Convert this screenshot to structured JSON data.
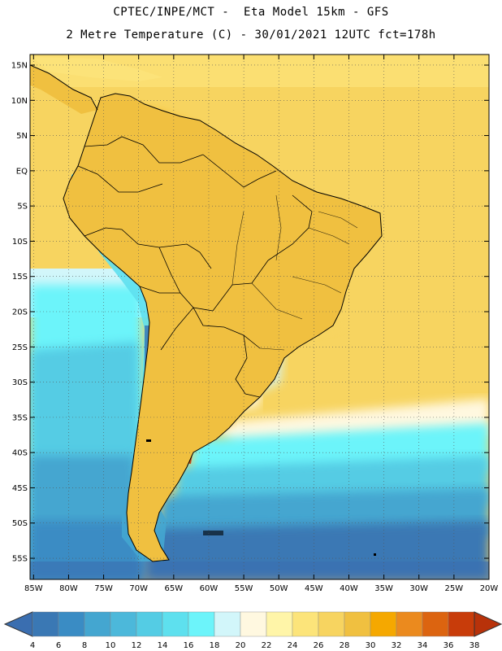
{
  "header": {
    "line1": "CPTEC/INPE/MCT -  Eta Model 15km - GFS",
    "line2": "2 Metre Temperature (C) - 30/01/2021 12UTC fct=178h"
  },
  "axes": {
    "lat_labels": [
      "15N",
      "10N",
      "5N",
      "EQ",
      "5S",
      "10S",
      "15S",
      "20S",
      "25S",
      "30S",
      "35S",
      "40S",
      "45S",
      "50S",
      "55S"
    ],
    "lat_values": [
      15,
      10,
      5,
      0,
      -5,
      -10,
      -15,
      -20,
      -25,
      -30,
      -35,
      -40,
      -45,
      -50,
      -55
    ],
    "lon_labels": [
      "85W",
      "80W",
      "75W",
      "70W",
      "65W",
      "60W",
      "55W",
      "50W",
      "45W",
      "40W",
      "35W",
      "30W",
      "25W",
      "20W"
    ],
    "lon_values": [
      -85,
      -80,
      -75,
      -70,
      -65,
      -60,
      -55,
      -50,
      -45,
      -40,
      -35,
      -30,
      -25,
      -20
    ],
    "lat_range": [
      -58,
      16.5
    ],
    "lon_range": [
      -85.5,
      -20
    ]
  },
  "colorbar": {
    "labels": [
      "4",
      "6",
      "8",
      "10",
      "12",
      "14",
      "16",
      "18",
      "20",
      "22",
      "24",
      "26",
      "28",
      "30",
      "32",
      "34",
      "36",
      "38"
    ],
    "colors": [
      "#3a78b4",
      "#3a8cc4",
      "#44a6d0",
      "#4cb8da",
      "#54cce4",
      "#5ee0ee",
      "#6cf4fa",
      "#d2f6fa",
      "#fff8e0",
      "#fff5a8",
      "#fce47a",
      "#f7d460",
      "#f0c040",
      "#f5a800",
      "#eb8a1e",
      "#dc6410",
      "#c83c0a"
    ],
    "low_color": "#3a6eb0",
    "high_color": "#b8320a"
  }
}
